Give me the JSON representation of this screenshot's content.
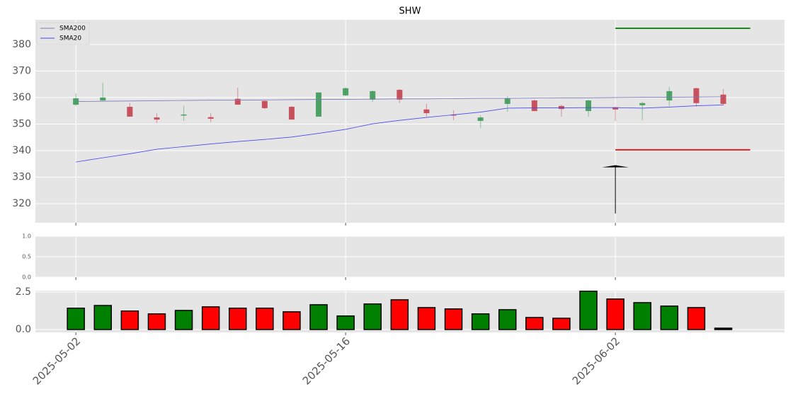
{
  "chart_data": [
    {
      "type": "candlestick",
      "title": "SHW",
      "x": [
        0,
        1,
        2,
        3,
        4,
        5,
        6,
        7,
        8,
        9,
        10,
        11,
        12,
        13,
        14,
        15,
        16,
        17,
        18,
        19,
        20,
        21,
        22,
        23,
        24
      ],
      "open": [
        357.3,
        358.9,
        356.5,
        352.5,
        353.4,
        352.6,
        359.5,
        358.7,
        356.5,
        352.8,
        360.8,
        359.2,
        362.9,
        355.5,
        353.6,
        351.2,
        357.6,
        358.9,
        356.8,
        354.9,
        356.3,
        357.1,
        358.9,
        363.5,
        361.1
      ],
      "close": [
        359.7,
        360.0,
        352.8,
        351.7,
        353.6,
        352.0,
        357.3,
        356.0,
        351.7,
        361.9,
        363.5,
        362.4,
        359.2,
        354.1,
        353.2,
        352.5,
        359.7,
        354.9,
        355.7,
        358.9,
        355.5,
        357.9,
        362.4,
        357.9,
        357.6
      ],
      "high": [
        361.6,
        365.6,
        357.9,
        354.1,
        356.8,
        354.1,
        363.7,
        358.9,
        356.8,
        361.9,
        364.0,
        362.7,
        363.2,
        357.6,
        355.2,
        353.3,
        360.5,
        359.2,
        357.3,
        359.2,
        356.5,
        358.4,
        364.0,
        363.7,
        363.2
      ],
      "low": [
        356.8,
        358.9,
        352.8,
        350.4,
        351.2,
        350.7,
        357.3,
        355.7,
        351.7,
        352.8,
        360.5,
        358.4,
        357.9,
        352.8,
        351.5,
        348.5,
        354.6,
        354.9,
        352.8,
        352.8,
        351.2,
        351.5,
        356.8,
        356.5,
        357.0
      ],
      "up_color": "#3d9a58",
      "down_color": "#c44250",
      "series": [
        {
          "name": "SMA200",
          "color": "#7a7ab8",
          "values": [
            358.5,
            358.6,
            358.7,
            358.8,
            358.9,
            359.0,
            359.0,
            359.1,
            359.2,
            359.3,
            359.3,
            359.4,
            359.5,
            359.5,
            359.6,
            359.7,
            359.7,
            359.8,
            359.9,
            359.9,
            360.0,
            360.1,
            360.1,
            360.2,
            360.3
          ]
        },
        {
          "name": "SMA20",
          "color": "#4848f0",
          "values": [
            335.7,
            337.3,
            338.8,
            340.5,
            341.5,
            342.5,
            343.4,
            344.2,
            345.1,
            346.5,
            348.0,
            350.1,
            351.4,
            352.5,
            353.5,
            354.5,
            356.0,
            356.1,
            356.1,
            356.2,
            356.2,
            356.0,
            356.4,
            356.9,
            357.2
          ]
        }
      ],
      "hlines": [
        {
          "value": 386.1,
          "color": "#1a8a1a",
          "from": 20,
          "to": 25
        },
        {
          "value": 340.3,
          "color": "#e02020",
          "from": 20,
          "to": 25
        }
      ],
      "arrow": {
        "x": 20,
        "from": 316.3,
        "to": 334.1
      },
      "ylim": [
        312.8,
        389.3
      ],
      "yticks": [
        320,
        330,
        340,
        350,
        360,
        370,
        380
      ],
      "grid": true,
      "legend": "upper-left"
    },
    {
      "type": "blank",
      "ylim": [
        0,
        1
      ],
      "yticks": [
        {
          "value": 0,
          "label": "0.0"
        },
        {
          "value": 0.5,
          "label": "0.5"
        },
        {
          "value": 1,
          "label": "1.0"
        }
      ],
      "grid": true
    },
    {
      "type": "bar",
      "x": [
        0,
        1,
        2,
        3,
        4,
        5,
        6,
        7,
        8,
        9,
        10,
        11,
        12,
        13,
        14,
        15,
        16,
        17,
        18,
        19,
        20,
        21,
        22,
        23,
        24
      ],
      "values": [
        1.42,
        1.6,
        1.23,
        1.04,
        1.27,
        1.51,
        1.42,
        1.42,
        1.18,
        1.65,
        0.9,
        1.7,
        1.98,
        1.46,
        1.37,
        1.04,
        1.32,
        0.8,
        0.75,
        2.55,
        2.03,
        1.79,
        1.56,
        1.46,
        0.09
      ],
      "colors": [
        "green",
        "green",
        "red",
        "red",
        "green",
        "red",
        "red",
        "red",
        "red",
        "green",
        "green",
        "green",
        "red",
        "red",
        "red",
        "green",
        "green",
        "red",
        "red",
        "green",
        "red",
        "green",
        "green",
        "red",
        "black"
      ],
      "ylim": [
        -0.19,
        2.59
      ],
      "yticks": [
        {
          "value": 0,
          "label": "0.0"
        },
        {
          "value": 2.5,
          "label": "2.5"
        }
      ],
      "xlim": [
        -1.5,
        26.27
      ],
      "xticks": [
        {
          "value": 0,
          "label": "2025-05-02"
        },
        {
          "value": 10,
          "label": "2025-05-16"
        },
        {
          "value": 20,
          "label": "2025-06-02"
        }
      ],
      "grid": true
    }
  ]
}
